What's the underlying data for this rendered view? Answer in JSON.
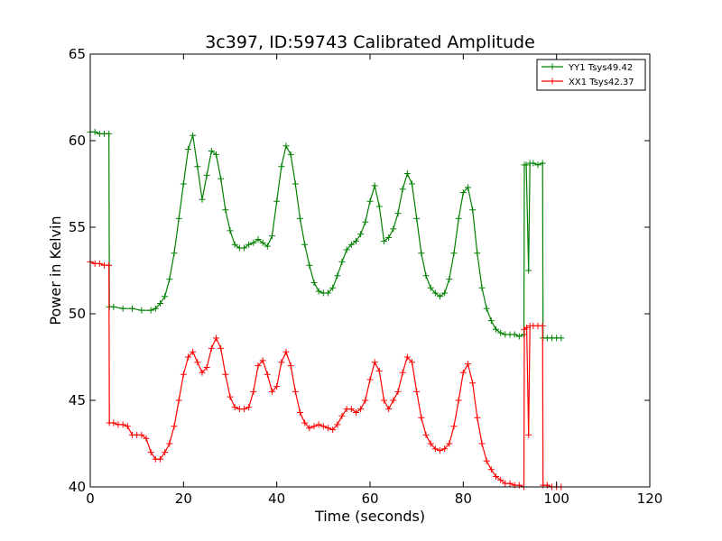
{
  "chart_data": {
    "type": "line",
    "title": "3c397, ID:59743 Calibrated Amplitude",
    "xlabel": "Time (seconds)",
    "ylabel": "Power in Kelvin",
    "xlim": [
      0,
      120
    ],
    "ylim": [
      40,
      65
    ],
    "xticks": [
      "0",
      "20",
      "40",
      "60",
      "80",
      "100",
      "120"
    ],
    "yticks": [
      "40",
      "45",
      "50",
      "55",
      "60",
      "65"
    ],
    "grid": false,
    "legend_position": "top-right",
    "marker": "+",
    "series": [
      {
        "name": "YY1 Tsys49.42",
        "color": "#008000",
        "points": [
          [
            0,
            60.5
          ],
          [
            1,
            60.5
          ],
          [
            2,
            60.4
          ],
          [
            3,
            60.4
          ],
          [
            4,
            60.4
          ],
          [
            4.1,
            50.4
          ],
          [
            5,
            50.4
          ],
          [
            7,
            50.3
          ],
          [
            9,
            50.3
          ],
          [
            11,
            50.2
          ],
          [
            13,
            50.2
          ],
          [
            14,
            50.3
          ],
          [
            15,
            50.6
          ],
          [
            16,
            51.0
          ],
          [
            17,
            52.0
          ],
          [
            18,
            53.5
          ],
          [
            19,
            55.5
          ],
          [
            20,
            57.5
          ],
          [
            21,
            59.5
          ],
          [
            22,
            60.3
          ],
          [
            23,
            58.5
          ],
          [
            24,
            56.6
          ],
          [
            25,
            58.0
          ],
          [
            26,
            59.4
          ],
          [
            27,
            59.2
          ],
          [
            28,
            57.8
          ],
          [
            29,
            56.0
          ],
          [
            30,
            54.8
          ],
          [
            31,
            54.0
          ],
          [
            32,
            53.8
          ],
          [
            33,
            53.8
          ],
          [
            34,
            54.0
          ],
          [
            35,
            54.1
          ],
          [
            36,
            54.3
          ],
          [
            37,
            54.1
          ],
          [
            38,
            53.9
          ],
          [
            39,
            54.5
          ],
          [
            40,
            56.5
          ],
          [
            41,
            58.5
          ],
          [
            42,
            59.7
          ],
          [
            43,
            59.2
          ],
          [
            44,
            57.5
          ],
          [
            45,
            55.5
          ],
          [
            46,
            54.0
          ],
          [
            47,
            52.8
          ],
          [
            48,
            51.8
          ],
          [
            49,
            51.3
          ],
          [
            50,
            51.2
          ],
          [
            51,
            51.2
          ],
          [
            52,
            51.5
          ],
          [
            53,
            52.2
          ],
          [
            54,
            53.0
          ],
          [
            55,
            53.7
          ],
          [
            56,
            54.0
          ],
          [
            57,
            54.2
          ],
          [
            58,
            54.6
          ],
          [
            59,
            55.3
          ],
          [
            60,
            56.5
          ],
          [
            61,
            57.4
          ],
          [
            62,
            56.2
          ],
          [
            63,
            54.2
          ],
          [
            64,
            54.4
          ],
          [
            65,
            54.9
          ],
          [
            66,
            55.8
          ],
          [
            67,
            57.2
          ],
          [
            68,
            58.1
          ],
          [
            69,
            57.5
          ],
          [
            70,
            55.5
          ],
          [
            71,
            53.5
          ],
          [
            72,
            52.2
          ],
          [
            73,
            51.5
          ],
          [
            74,
            51.2
          ],
          [
            75,
            51.0
          ],
          [
            76,
            51.2
          ],
          [
            77,
            52.0
          ],
          [
            78,
            53.5
          ],
          [
            79,
            55.5
          ],
          [
            80,
            57.0
          ],
          [
            81,
            57.3
          ],
          [
            82,
            56.0
          ],
          [
            83,
            53.5
          ],
          [
            84,
            51.5
          ],
          [
            85,
            50.3
          ],
          [
            86,
            49.6
          ],
          [
            87,
            49.1
          ],
          [
            88,
            48.9
          ],
          [
            89,
            48.8
          ],
          [
            90,
            48.8
          ],
          [
            91,
            48.8
          ],
          [
            92,
            48.7
          ],
          [
            93,
            48.8
          ],
          [
            93.1,
            58.6
          ],
          [
            93.5,
            58.6
          ],
          [
            94,
            52.5
          ],
          [
            94.3,
            58.7
          ],
          [
            95,
            58.7
          ],
          [
            96,
            58.6
          ],
          [
            97,
            58.7
          ],
          [
            97.1,
            48.6
          ],
          [
            98,
            48.6
          ],
          [
            99,
            48.6
          ],
          [
            100,
            48.6
          ],
          [
            101,
            48.6
          ]
        ]
      },
      {
        "name": "XX1 Tsys42.37",
        "color": "#ff0000",
        "points": [
          [
            0,
            53.0
          ],
          [
            1,
            52.9
          ],
          [
            2,
            52.9
          ],
          [
            3,
            52.8
          ],
          [
            4,
            52.8
          ],
          [
            4.1,
            43.7
          ],
          [
            5,
            43.7
          ],
          [
            6,
            43.6
          ],
          [
            7,
            43.6
          ],
          [
            8,
            43.5
          ],
          [
            9,
            43.0
          ],
          [
            10,
            43.0
          ],
          [
            11,
            43.0
          ],
          [
            12,
            42.8
          ],
          [
            13,
            42.0
          ],
          [
            14,
            41.6
          ],
          [
            15,
            41.6
          ],
          [
            16,
            42.0
          ],
          [
            17,
            42.5
          ],
          [
            18,
            43.5
          ],
          [
            19,
            45.0
          ],
          [
            20,
            46.5
          ],
          [
            21,
            47.5
          ],
          [
            22,
            47.8
          ],
          [
            23,
            47.2
          ],
          [
            24,
            46.6
          ],
          [
            25,
            46.9
          ],
          [
            26,
            48.0
          ],
          [
            27,
            48.6
          ],
          [
            28,
            48.0
          ],
          [
            29,
            46.5
          ],
          [
            30,
            45.2
          ],
          [
            31,
            44.6
          ],
          [
            32,
            44.5
          ],
          [
            33,
            44.5
          ],
          [
            34,
            44.6
          ],
          [
            35,
            45.5
          ],
          [
            36,
            47.0
          ],
          [
            37,
            47.3
          ],
          [
            38,
            46.5
          ],
          [
            39,
            45.5
          ],
          [
            40,
            45.8
          ],
          [
            41,
            47.2
          ],
          [
            42,
            47.8
          ],
          [
            43,
            47.0
          ],
          [
            44,
            45.5
          ],
          [
            45,
            44.3
          ],
          [
            46,
            43.7
          ],
          [
            47,
            43.4
          ],
          [
            48,
            43.5
          ],
          [
            49,
            43.6
          ],
          [
            50,
            43.5
          ],
          [
            51,
            43.4
          ],
          [
            52,
            43.3
          ],
          [
            53,
            43.6
          ],
          [
            54,
            44.1
          ],
          [
            55,
            44.5
          ],
          [
            56,
            44.5
          ],
          [
            57,
            44.3
          ],
          [
            58,
            44.5
          ],
          [
            59,
            45.0
          ],
          [
            60,
            46.2
          ],
          [
            61,
            47.2
          ],
          [
            62,
            46.7
          ],
          [
            63,
            45.0
          ],
          [
            64,
            44.5
          ],
          [
            65,
            45.0
          ],
          [
            66,
            45.5
          ],
          [
            67,
            46.6
          ],
          [
            68,
            47.5
          ],
          [
            69,
            47.2
          ],
          [
            70,
            45.5
          ],
          [
            71,
            44.0
          ],
          [
            72,
            43.0
          ],
          [
            73,
            42.5
          ],
          [
            74,
            42.2
          ],
          [
            75,
            42.1
          ],
          [
            76,
            42.2
          ],
          [
            77,
            42.5
          ],
          [
            78,
            43.5
          ],
          [
            79,
            45.0
          ],
          [
            80,
            46.6
          ],
          [
            81,
            47.1
          ],
          [
            82,
            46.0
          ],
          [
            83,
            44.0
          ],
          [
            84,
            42.5
          ],
          [
            85,
            41.5
          ],
          [
            86,
            41.0
          ],
          [
            87,
            40.6
          ],
          [
            88,
            40.4
          ],
          [
            89,
            40.2
          ],
          [
            90,
            40.2
          ],
          [
            91,
            40.1
          ],
          [
            92,
            40.1
          ],
          [
            93,
            40.0
          ],
          [
            93.1,
            49.1
          ],
          [
            93.6,
            49.2
          ],
          [
            94,
            43.0
          ],
          [
            94.3,
            49.3
          ],
          [
            95,
            49.3
          ],
          [
            96,
            49.3
          ],
          [
            97,
            49.3
          ],
          [
            97.1,
            40.1
          ],
          [
            98,
            40.1
          ],
          [
            99,
            40.0
          ],
          [
            100,
            40.0
          ],
          [
            101,
            40.0
          ]
        ]
      }
    ]
  }
}
